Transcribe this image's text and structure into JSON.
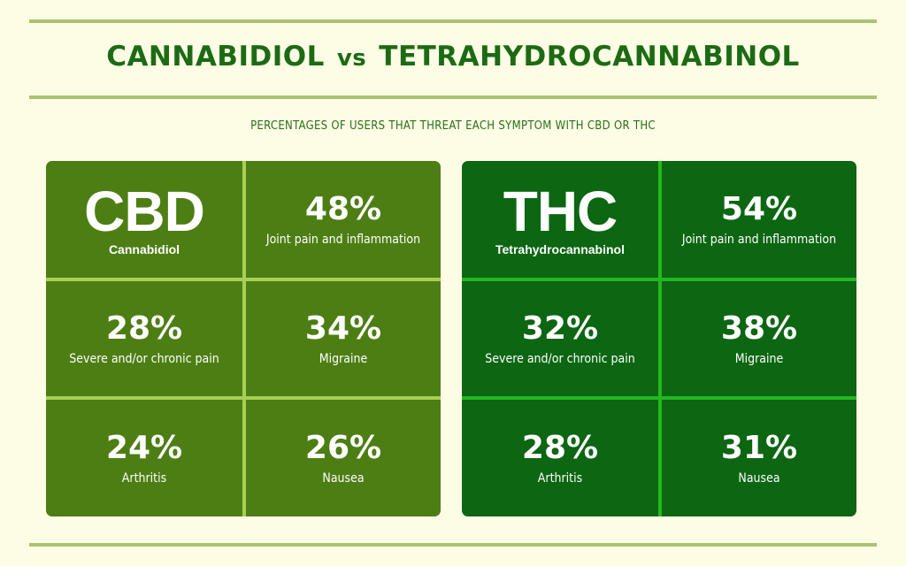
{
  "header": {
    "title_left": "CANNABIDIOL",
    "title_vs": "vs",
    "title_right": "TETRAHYDROCANNABINOL",
    "subtitle": "PERCENTAGES OF USERS THAT THREAT EACH SYMPTOM WITH CBD OR THC"
  },
  "colors": {
    "background": "#fdfde6",
    "rule": "#a9c470",
    "title": "#1c6b14",
    "cbd_panel": "#4d7e14",
    "cbd_divider": "#a8cf55",
    "thc_panel": "#0c6612",
    "thc_divider": "#22b81f",
    "text_on_panel": "#ffffff"
  },
  "cbd": {
    "abbr": "CBD",
    "name": "Cannabidiol",
    "items": [
      {
        "value": "48%",
        "label": "Joint pain and inflammation"
      },
      {
        "value": "28%",
        "label": "Severe and/or chronic pain"
      },
      {
        "value": "34%",
        "label": "Migraine"
      },
      {
        "value": "24%",
        "label": "Arthritis"
      },
      {
        "value": "26%",
        "label": "Nausea"
      }
    ]
  },
  "thc": {
    "abbr": "THC",
    "name": "Tetrahydrocannabinol",
    "items": [
      {
        "value": "54%",
        "label": "Joint pain and inflammation"
      },
      {
        "value": "32%",
        "label": "Severe and/or chronic pain"
      },
      {
        "value": "38%",
        "label": "Migraine"
      },
      {
        "value": "28%",
        "label": "Arthritis"
      },
      {
        "value": "31%",
        "label": "Nausea"
      }
    ]
  }
}
